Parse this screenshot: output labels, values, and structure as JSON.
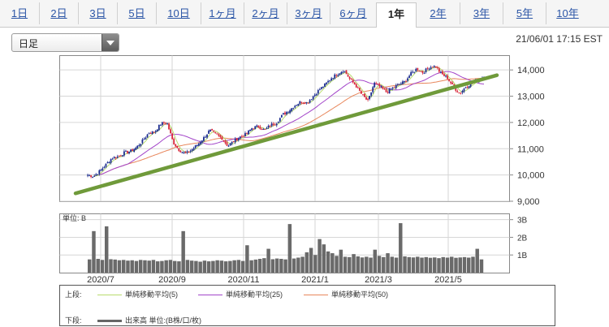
{
  "tabs": [
    {
      "label": "1日"
    },
    {
      "label": "2日"
    },
    {
      "label": "3日"
    },
    {
      "label": "5日"
    },
    {
      "label": "10日"
    },
    {
      "label": "1ヶ月"
    },
    {
      "label": "2ヶ月"
    },
    {
      "label": "3ヶ月"
    },
    {
      "label": "6ヶ月"
    },
    {
      "label": "1年",
      "active": true
    },
    {
      "label": "2年"
    },
    {
      "label": "3年"
    },
    {
      "label": "5年"
    },
    {
      "label": "10年"
    }
  ],
  "period_select": {
    "value": "日足"
  },
  "timestamp": "21/06/01 17:15 EST",
  "legend": {
    "upper_label": "上段:",
    "lower_label": "下段:",
    "items": [
      {
        "name": "単純移動平均(5)",
        "color": "#b8dc6e"
      },
      {
        "name": "単純移動平均(25)",
        "color": "#a345c9"
      },
      {
        "name": "単純移動平均(50)",
        "color": "#e8875c"
      }
    ],
    "volume": {
      "name": "出来高 単位:(B株/口/枚)",
      "color": "#666666"
    }
  },
  "chart_data": [
    {
      "type": "candlestick",
      "y_tick_labels": [
        "9,000",
        "10,000",
        "11,000",
        "12,000",
        "13,000",
        "14,000"
      ],
      "ylim": [
        9000,
        14500
      ],
      "x_tick_labels": [
        "2020/7",
        "2020/9",
        "2020/11",
        "2021/1",
        "2021/3",
        "2021/5"
      ],
      "grid": true,
      "close_series": [
        10000,
        9950,
        10150,
        10400,
        10650,
        10700,
        10850,
        10900,
        11050,
        11300,
        11600,
        11650,
        11950,
        12000,
        11250,
        10950,
        10800,
        10950,
        11150,
        11400,
        11700,
        11550,
        11400,
        11100,
        11300,
        11450,
        11550,
        11800,
        11850,
        11700,
        11900,
        12000,
        12300,
        12450,
        12650,
        12800,
        12750,
        13000,
        13250,
        13450,
        13700,
        13850,
        14000,
        13650,
        13400,
        13050,
        12800,
        13500,
        13350,
        13150,
        13300,
        13450,
        13550,
        13850,
        14050,
        13900,
        14100,
        14150,
        13850,
        13700,
        13350,
        13100,
        13350,
        13500,
        13600,
        13750
      ],
      "trendline": {
        "color": "#6f9a3a",
        "from": 9300,
        "to": 13800
      },
      "series": [
        {
          "name": "単純移動平均(5)",
          "color": "#b8dc6e"
        },
        {
          "name": "単純移動平均(25)",
          "color": "#a345c9"
        },
        {
          "name": "単純移動平均(50)",
          "color": "#e8875c"
        }
      ]
    },
    {
      "type": "bar",
      "y_tick_labels": [
        "1B",
        "2B",
        "3B"
      ],
      "ylim": [
        0,
        3
      ],
      "unit_label": "単位: B",
      "values": [
        0.75,
        2.35,
        0.78,
        0.72,
        2.62,
        0.76,
        0.74,
        0.7,
        0.72,
        0.68,
        0.7,
        0.66,
        0.72,
        0.7,
        0.68,
        0.72,
        0.64,
        0.66,
        0.7,
        0.72,
        0.66,
        0.64,
        2.35,
        0.72,
        0.68,
        0.66,
        0.62,
        0.68,
        0.64,
        0.66,
        0.7,
        0.68,
        0.64,
        0.66,
        0.7,
        0.72,
        0.66,
        1.55,
        0.7,
        0.74,
        0.78,
        0.82,
        1.35,
        0.76,
        0.8,
        0.78,
        0.75,
        2.75,
        0.8,
        0.85,
        0.9,
        1.15,
        1.4,
        1.0,
        1.9,
        1.6,
        1.2,
        1.1,
        0.95,
        1.3,
        0.9,
        0.88,
        1.05,
        0.92,
        0.86,
        0.9,
        0.85,
        1.3,
        0.95,
        0.88,
        1.1,
        0.9,
        0.85,
        2.8,
        0.92,
        0.88,
        0.86,
        0.9,
        0.85,
        0.88,
        0.84,
        0.86,
        0.82,
        0.88,
        0.85,
        0.9,
        0.84,
        0.86,
        0.88,
        0.85,
        0.9,
        1.35,
        0.75
      ]
    }
  ]
}
